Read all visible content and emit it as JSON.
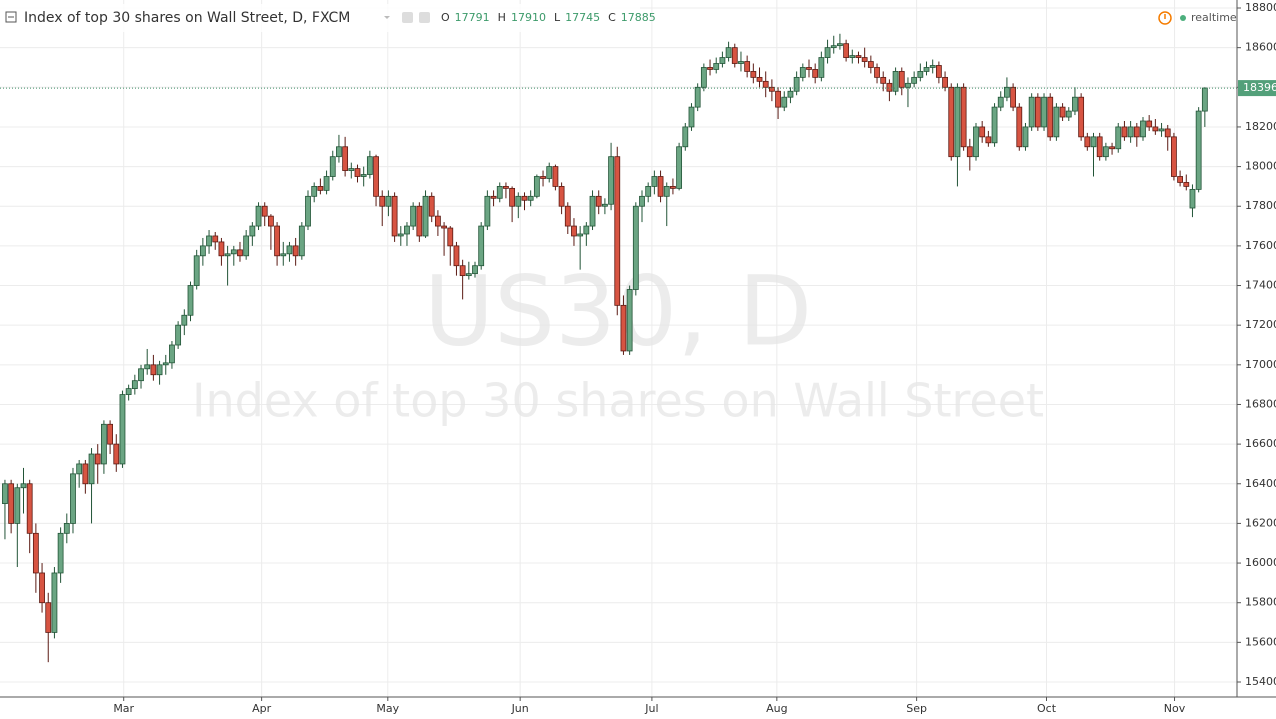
{
  "chart_data": {
    "type": "candlestick",
    "title": "Index of top 30 shares on Wall Street, D, FXCM",
    "ohlc_labels": [
      "O",
      "H",
      "L",
      "C"
    ],
    "status": "realtime",
    "watermark_symbol": "US30, D",
    "watermark_text": "Index of top 30 shares on Wall Street",
    "up_color": "#6ba583",
    "up_border": "#225437",
    "down_color": "#d75442",
    "down_border": "#5b1a13",
    "ylim": [
      15400,
      18800
    ],
    "yticks": [
      15400,
      15600,
      15800,
      16000,
      16200,
      16400,
      16600,
      16800,
      17000,
      17200,
      17400,
      17600,
      17800,
      18000,
      18200,
      18400,
      18600,
      18800
    ],
    "xlim": [
      -0.8,
      199.2
    ],
    "xticks": [
      {
        "value": 19.2,
        "label": "Mar"
      },
      {
        "value": 41.5,
        "label": "Apr"
      },
      {
        "value": 61.9,
        "label": "May"
      },
      {
        "value": 83.3,
        "label": "Jun"
      },
      {
        "value": 104.6,
        "label": "Jul"
      },
      {
        "value": 124.8,
        "label": "Aug"
      },
      {
        "value": 147.4,
        "label": "Sep"
      },
      {
        "value": 168.4,
        "label": "Oct"
      },
      {
        "value": 189.1,
        "label": "Nov"
      }
    ],
    "grid": true,
    "ohlc": [
      [
        16300,
        16420,
        16120,
        16400
      ],
      [
        16400,
        16420,
        16150,
        16200
      ],
      [
        16200,
        16400,
        15980,
        16380
      ],
      [
        16380,
        16480,
        16250,
        16400
      ],
      [
        16400,
        16420,
        16050,
        16150
      ],
      [
        16150,
        16200,
        15850,
        15950
      ],
      [
        15950,
        16000,
        15750,
        15800
      ],
      [
        15800,
        15850,
        15500,
        15650
      ],
      [
        15650,
        15980,
        15620,
        15950
      ],
      [
        15950,
        16180,
        15900,
        16150
      ],
      [
        16150,
        16250,
        16100,
        16200
      ],
      [
        16200,
        16480,
        16150,
        16450
      ],
      [
        16450,
        16520,
        16380,
        16500
      ],
      [
        16500,
        16520,
        16350,
        16400
      ],
      [
        16400,
        16580,
        16200,
        16550
      ],
      [
        16550,
        16600,
        16400,
        16500
      ],
      [
        16500,
        16720,
        16450,
        16700
      ],
      [
        16700,
        16720,
        16550,
        16600
      ],
      [
        16600,
        16650,
        16460,
        16500
      ],
      [
        16500,
        16870,
        16480,
        16850
      ],
      [
        16850,
        16900,
        16820,
        16880
      ],
      [
        16880,
        16950,
        16850,
        16920
      ],
      [
        16920,
        17000,
        16880,
        16980
      ],
      [
        16980,
        17080,
        16950,
        17000
      ],
      [
        17000,
        17050,
        16920,
        16950
      ],
      [
        16950,
        17020,
        16900,
        17000
      ],
      [
        17000,
        17050,
        16950,
        17010
      ],
      [
        17010,
        17120,
        16980,
        17100
      ],
      [
        17100,
        17220,
        17080,
        17200
      ],
      [
        17200,
        17280,
        17150,
        17250
      ],
      [
        17250,
        17420,
        17220,
        17400
      ],
      [
        17400,
        17580,
        17380,
        17550
      ],
      [
        17550,
        17640,
        17500,
        17600
      ],
      [
        17600,
        17680,
        17560,
        17650
      ],
      [
        17650,
        17670,
        17580,
        17620
      ],
      [
        17620,
        17640,
        17500,
        17550
      ],
      [
        17550,
        17600,
        17400,
        17560
      ],
      [
        17560,
        17600,
        17500,
        17580
      ],
      [
        17580,
        17620,
        17520,
        17550
      ],
      [
        17550,
        17680,
        17530,
        17650
      ],
      [
        17650,
        17720,
        17600,
        17700
      ],
      [
        17700,
        17820,
        17680,
        17800
      ],
      [
        17800,
        17820,
        17700,
        17750
      ],
      [
        17750,
        17760,
        17580,
        17700
      ],
      [
        17700,
        17720,
        17500,
        17550
      ],
      [
        17550,
        17620,
        17500,
        17560
      ],
      [
        17560,
        17620,
        17520,
        17600
      ],
      [
        17600,
        17640,
        17500,
        17550
      ],
      [
        17550,
        17720,
        17530,
        17700
      ],
      [
        17700,
        17880,
        17680,
        17850
      ],
      [
        17850,
        17920,
        17820,
        17900
      ],
      [
        17900,
        17940,
        17860,
        17880
      ],
      [
        17880,
        17980,
        17860,
        17950
      ],
      [
        17950,
        18080,
        17930,
        18050
      ],
      [
        18050,
        18160,
        18020,
        18100
      ],
      [
        18100,
        18150,
        17950,
        17980
      ],
      [
        17980,
        18020,
        17940,
        17990
      ],
      [
        17990,
        18010,
        17920,
        17950
      ],
      [
        17950,
        18000,
        17900,
        17960
      ],
      [
        17960,
        18080,
        17940,
        18050
      ],
      [
        18050,
        18060,
        17800,
        17850
      ],
      [
        17850,
        17880,
        17700,
        17800
      ],
      [
        17800,
        17880,
        17750,
        17850
      ],
      [
        17850,
        17870,
        17620,
        17650
      ],
      [
        17650,
        17700,
        17600,
        17660
      ],
      [
        17660,
        17720,
        17600,
        17700
      ],
      [
        17700,
        17820,
        17680,
        17800
      ],
      [
        17800,
        17820,
        17620,
        17650
      ],
      [
        17650,
        17880,
        17640,
        17850
      ],
      [
        17850,
        17870,
        17720,
        17750
      ],
      [
        17750,
        17780,
        17650,
        17700
      ],
      [
        17700,
        17720,
        17550,
        17690
      ],
      [
        17690,
        17700,
        17500,
        17600
      ],
      [
        17600,
        17620,
        17450,
        17500
      ],
      [
        17500,
        17530,
        17330,
        17450
      ],
      [
        17450,
        17520,
        17430,
        17460
      ],
      [
        17460,
        17520,
        17440,
        17500
      ],
      [
        17500,
        17720,
        17480,
        17700
      ],
      [
        17700,
        17880,
        17680,
        17850
      ],
      [
        17850,
        17880,
        17800,
        17840
      ],
      [
        17840,
        17920,
        17820,
        17900
      ],
      [
        17900,
        17920,
        17840,
        17890
      ],
      [
        17890,
        17900,
        17720,
        17800
      ],
      [
        17800,
        17870,
        17740,
        17850
      ],
      [
        17850,
        17870,
        17780,
        17830
      ],
      [
        17830,
        17880,
        17800,
        17850
      ],
      [
        17850,
        17960,
        17840,
        17950
      ],
      [
        17950,
        17980,
        17900,
        17940
      ],
      [
        17940,
        18020,
        17920,
        18000
      ],
      [
        18000,
        18010,
        17880,
        17900
      ],
      [
        17900,
        17920,
        17760,
        17800
      ],
      [
        17800,
        17820,
        17660,
        17700
      ],
      [
        17700,
        17740,
        17600,
        17650
      ],
      [
        17650,
        17700,
        17480,
        17660
      ],
      [
        17660,
        17720,
        17600,
        17700
      ],
      [
        17700,
        17880,
        17680,
        17850
      ],
      [
        17850,
        17880,
        17760,
        17800
      ],
      [
        17800,
        17840,
        17760,
        17810
      ],
      [
        17810,
        18120,
        17780,
        18050
      ],
      [
        18050,
        18100,
        17250,
        17300
      ],
      [
        17300,
        17350,
        17050,
        17070
      ],
      [
        17070,
        17400,
        17050,
        17380
      ],
      [
        17380,
        17820,
        17350,
        17800
      ],
      [
        17800,
        17880,
        17720,
        17850
      ],
      [
        17850,
        17920,
        17820,
        17900
      ],
      [
        17900,
        17980,
        17860,
        17950
      ],
      [
        17950,
        17980,
        17820,
        17850
      ],
      [
        17850,
        17920,
        17700,
        17900
      ],
      [
        17900,
        17940,
        17860,
        17890
      ],
      [
        17890,
        18120,
        17880,
        18100
      ],
      [
        18100,
        18220,
        18080,
        18200
      ],
      [
        18200,
        18320,
        18180,
        18300
      ],
      [
        18300,
        18420,
        18280,
        18400
      ],
      [
        18400,
        18520,
        18380,
        18500
      ],
      [
        18500,
        18540,
        18460,
        18490
      ],
      [
        18490,
        18550,
        18470,
        18520
      ],
      [
        18520,
        18580,
        18500,
        18550
      ],
      [
        18550,
        18630,
        18530,
        18600
      ],
      [
        18600,
        18620,
        18500,
        18520
      ],
      [
        18520,
        18580,
        18480,
        18530
      ],
      [
        18530,
        18560,
        18450,
        18480
      ],
      [
        18480,
        18520,
        18420,
        18450
      ],
      [
        18450,
        18500,
        18400,
        18430
      ],
      [
        18430,
        18480,
        18350,
        18400
      ],
      [
        18400,
        18440,
        18330,
        18380
      ],
      [
        18380,
        18400,
        18240,
        18300
      ],
      [
        18300,
        18380,
        18280,
        18350
      ],
      [
        18350,
        18400,
        18320,
        18380
      ],
      [
        18380,
        18480,
        18360,
        18450
      ],
      [
        18450,
        18520,
        18430,
        18500
      ],
      [
        18500,
        18540,
        18450,
        18490
      ],
      [
        18490,
        18520,
        18420,
        18450
      ],
      [
        18450,
        18580,
        18430,
        18550
      ],
      [
        18550,
        18640,
        18520,
        18600
      ],
      [
        18600,
        18660,
        18570,
        18610
      ],
      [
        18610,
        18670,
        18590,
        18620
      ],
      [
        18620,
        18640,
        18530,
        18550
      ],
      [
        18550,
        18590,
        18520,
        18560
      ],
      [
        18560,
        18580,
        18520,
        18550
      ],
      [
        18550,
        18600,
        18500,
        18530
      ],
      [
        18530,
        18560,
        18470,
        18500
      ],
      [
        18500,
        18520,
        18420,
        18450
      ],
      [
        18450,
        18480,
        18380,
        18420
      ],
      [
        18420,
        18440,
        18330,
        18380
      ],
      [
        18380,
        18500,
        18360,
        18480
      ],
      [
        18480,
        18500,
        18360,
        18400
      ],
      [
        18400,
        18450,
        18300,
        18420
      ],
      [
        18420,
        18480,
        18400,
        18450
      ],
      [
        18450,
        18520,
        18430,
        18480
      ],
      [
        18480,
        18530,
        18460,
        18500
      ],
      [
        18500,
        18540,
        18470,
        18510
      ],
      [
        18510,
        18530,
        18420,
        18450
      ],
      [
        18450,
        18480,
        18380,
        18400
      ],
      [
        18400,
        18420,
        18030,
        18050
      ],
      [
        18050,
        18420,
        17900,
        18400
      ],
      [
        18400,
        18420,
        18080,
        18100
      ],
      [
        18100,
        18140,
        17980,
        18050
      ],
      [
        18050,
        18220,
        18030,
        18200
      ],
      [
        18200,
        18230,
        18120,
        18150
      ],
      [
        18150,
        18180,
        18100,
        18120
      ],
      [
        18120,
        18320,
        18100,
        18300
      ],
      [
        18300,
        18380,
        18280,
        18350
      ],
      [
        18350,
        18450,
        18330,
        18400
      ],
      [
        18400,
        18420,
        18280,
        18300
      ],
      [
        18300,
        18320,
        18080,
        18100
      ],
      [
        18100,
        18220,
        18080,
        18200
      ],
      [
        18200,
        18370,
        18180,
        18350
      ],
      [
        18350,
        18370,
        18180,
        18200
      ],
      [
        18200,
        18370,
        18180,
        18350
      ],
      [
        18350,
        18370,
        18130,
        18150
      ],
      [
        18150,
        18320,
        18130,
        18300
      ],
      [
        18300,
        18320,
        18230,
        18250
      ],
      [
        18250,
        18300,
        18230,
        18280
      ],
      [
        18280,
        18400,
        18260,
        18350
      ],
      [
        18350,
        18370,
        18130,
        18150
      ],
      [
        18150,
        18170,
        18080,
        18100
      ],
      [
        18100,
        18170,
        17950,
        18150
      ],
      [
        18150,
        18170,
        18030,
        18050
      ],
      [
        18050,
        18120,
        18030,
        18100
      ],
      [
        18100,
        18120,
        18060,
        18090
      ],
      [
        18090,
        18220,
        18070,
        18200
      ],
      [
        18200,
        18230,
        18130,
        18150
      ],
      [
        18150,
        18230,
        18120,
        18200
      ],
      [
        18200,
        18220,
        18100,
        18150
      ],
      [
        18150,
        18250,
        18130,
        18230
      ],
      [
        18230,
        18260,
        18180,
        18200
      ],
      [
        18200,
        18240,
        18160,
        18180
      ],
      [
        18180,
        18220,
        18150,
        18190
      ],
      [
        18190,
        18210,
        18080,
        18150
      ],
      [
        18150,
        18170,
        17930,
        17950
      ],
      [
        17950,
        17980,
        17900,
        17920
      ],
      [
        17920,
        17960,
        17880,
        17900
      ],
      [
        17791,
        17910,
        17745,
        17885
      ],
      [
        17885,
        18300,
        17870,
        18280
      ],
      [
        18280,
        18400,
        18200,
        18396
      ]
    ]
  }
}
